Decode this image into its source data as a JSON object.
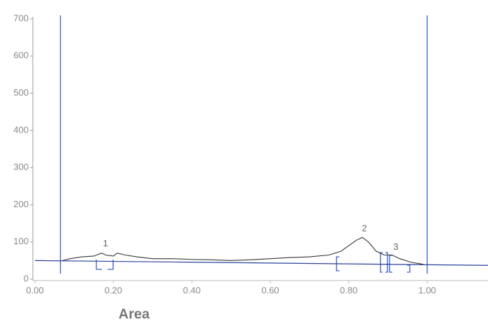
{
  "chart_data": {
    "type": "line",
    "x_label": "Area",
    "xlim": [
      0,
      1.155
    ],
    "ylim": [
      0,
      700
    ],
    "xticks": [
      {
        "value": 0,
        "label": "0.00"
      },
      {
        "value": 0.2,
        "label": "0.20"
      },
      {
        "value": 0.4,
        "label": "0.40"
      },
      {
        "value": 0.6,
        "label": "0.60"
      },
      {
        "value": 0.8,
        "label": "0.80"
      },
      {
        "value": 1,
        "label": "1.00"
      }
    ],
    "yticks": [
      0,
      100,
      200,
      300,
      400,
      500,
      600,
      700
    ],
    "series": [
      {
        "color": "#333333",
        "x": [
          0.07,
          0.09,
          0.12,
          0.15,
          0.17,
          0.18,
          0.2,
          0.21,
          0.23,
          0.26,
          0.3,
          0.35,
          0.4,
          0.45,
          0.5,
          0.55,
          0.6,
          0.65,
          0.7,
          0.75,
          0.78,
          0.8,
          0.82,
          0.835,
          0.85,
          0.87,
          0.89,
          0.91,
          0.93,
          0.96,
          0.99
        ],
        "values": [
          50,
          55,
          60,
          62,
          70,
          65,
          62,
          70,
          65,
          60,
          55,
          55,
          53,
          52,
          50,
          52,
          55,
          58,
          60,
          65,
          75,
          90,
          105,
          112,
          100,
          75,
          65,
          65,
          55,
          45,
          40
        ]
      }
    ],
    "markers": {
      "color": "#3a5bc7",
      "x": [
        0.065,
        1.0
      ]
    },
    "baseline": {
      "color": "#2a3f9a",
      "x": [
        0,
        1.155
      ],
      "y": [
        50,
        37
      ]
    },
    "annotations": [
      {
        "text": "1",
        "x": 0.18,
        "y": 95
      },
      {
        "text": "2",
        "x": 0.84,
        "y": 135
      },
      {
        "text": "3",
        "x": 0.92,
        "y": 85
      }
    ]
  }
}
